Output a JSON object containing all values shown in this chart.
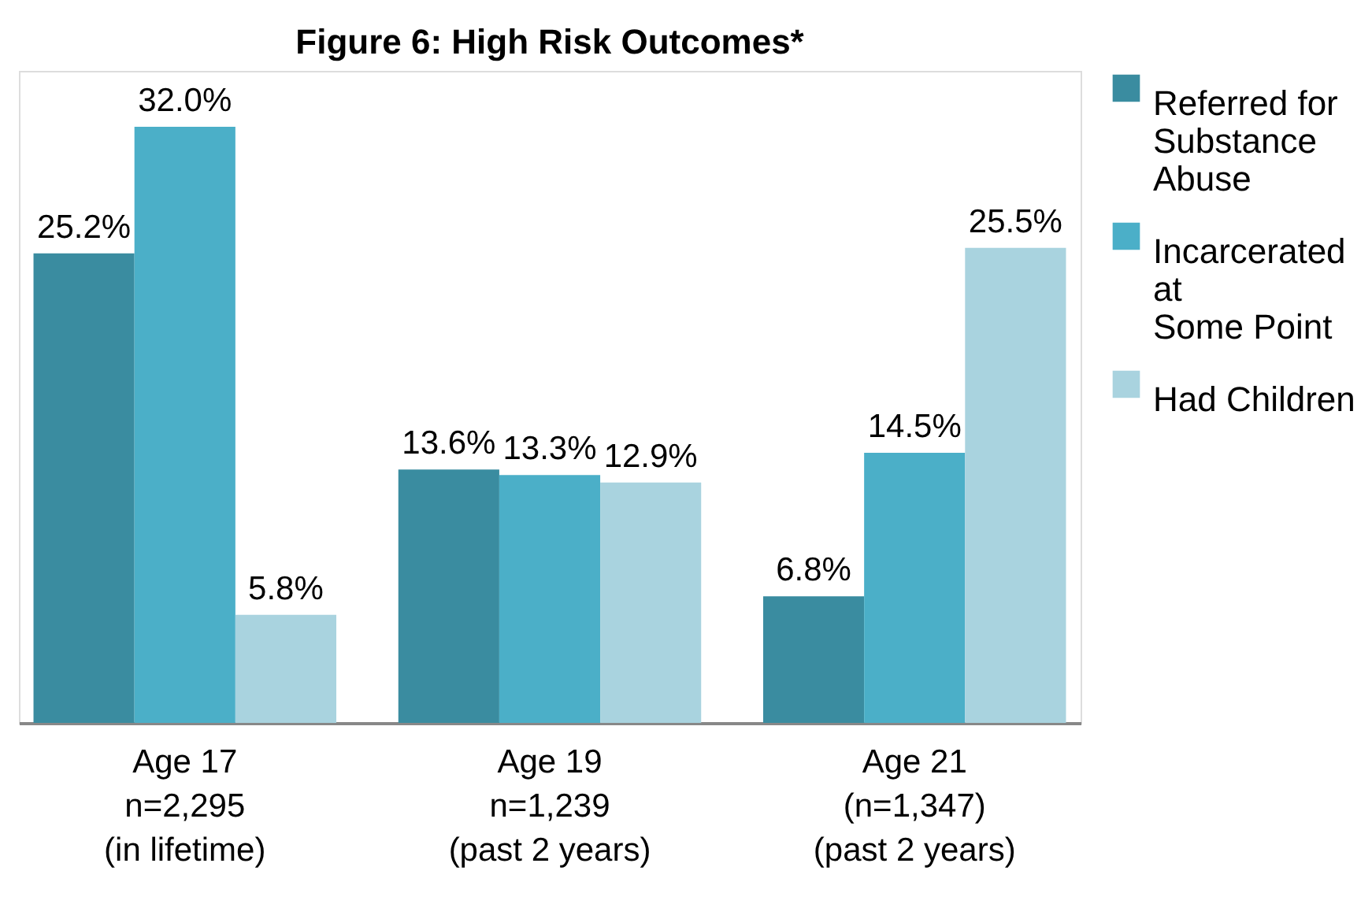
{
  "chart_data": {
    "type": "bar",
    "title": "Figure 6: High Risk Outcomes*",
    "categories": [
      "Age 17\nn=2,295\n(in lifetime)",
      "Age 19\nn=1,239\n(past 2 years)",
      "Age 21\n(n=1,347)\n(past 2 years)"
    ],
    "series": [
      {
        "name": "Referred for\nSubstance\nAbuse",
        "color": "#3a8ca0",
        "values": [
          25.2,
          13.6,
          6.8
        ],
        "value_labels": [
          "25.2%",
          "13.6%",
          "6.8%"
        ]
      },
      {
        "name": "Incarcerated\nat\nSome Point",
        "color": "#4bafc8",
        "values": [
          32.0,
          13.3,
          14.5
        ],
        "value_labels": [
          "32.0%",
          "13.3%",
          "14.5%"
        ]
      },
      {
        "name": "Had Children",
        "color": "#a9d3df",
        "values": [
          5.8,
          12.9,
          25.5
        ],
        "value_labels": [
          "5.8%",
          "12.9%",
          "25.5%"
        ]
      }
    ],
    "ylim": [
      0,
      35
    ],
    "legend": "right",
    "grid": false
  }
}
